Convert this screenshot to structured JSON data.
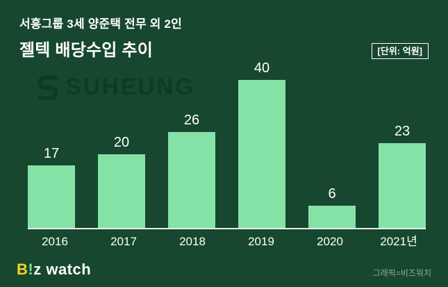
{
  "colors": {
    "background": "#17472F",
    "bar": "#85E2A6",
    "axis_line": "#E8EFE9",
    "watermark": "#0C3A24",
    "logo_b": "#F5D327",
    "logo_excl": "#7EE2A0",
    "text": "#FFFFFF",
    "credit_text": "#93A99B"
  },
  "header": {
    "subtitle": "서흥그룹 3세 양준택 전무 외 2인",
    "title": "젤텍 배당수입 추이",
    "unit_label": "[단위: 억원]"
  },
  "watermark": {
    "text": "SUHEUNG"
  },
  "chart_data": {
    "type": "bar",
    "categories": [
      "2016",
      "2017",
      "2018",
      "2019",
      "2020",
      "2021년"
    ],
    "values": [
      17,
      20,
      26,
      40,
      6,
      23
    ],
    "title": "젤텍 배당수입 추이",
    "xlabel": "",
    "ylabel": "",
    "unit": "억원",
    "ylim": [
      0,
      44
    ],
    "grid": false,
    "legend": false,
    "bar_color": "#85E2A6",
    "value_label_color": "#FFFFFF"
  },
  "footer": {
    "logo": {
      "b": "B",
      "excl": "!",
      "z": "z",
      "watch": " watch"
    },
    "credit": "그래픽=비즈워치"
  }
}
